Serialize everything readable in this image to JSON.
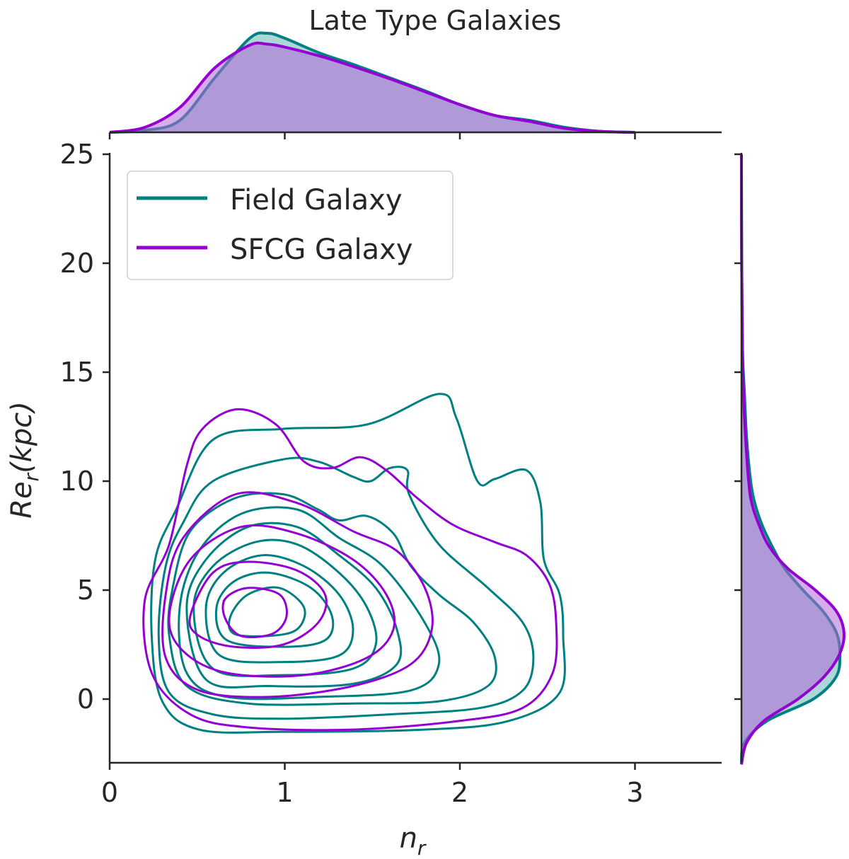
{
  "chart_data": {
    "type": "kde-joint-contour",
    "title": "Late Type Galaxies",
    "xlabel": "n",
    "xlabel_sub": "r",
    "ylabel": "Re",
    "ylabel_sub": "r",
    "ylabel_suffix": "(kpc)",
    "xlim": [
      0,
      3.5
    ],
    "ylim": [
      -2.9,
      25
    ],
    "xticks": [
      0,
      1,
      2,
      3
    ],
    "yticks": [
      0,
      5,
      10,
      15,
      20,
      25
    ],
    "grid": false,
    "legend_position": "top-left",
    "series": [
      {
        "name": "Field Galaxy",
        "color": "#008080",
        "contours": [
          [
            [
              0.38,
              8.7
            ],
            [
              0.59,
              11.9
            ],
            [
              0.99,
              12.4
            ],
            [
              1.47,
              12.6
            ],
            [
              1.88,
              14.0
            ],
            [
              1.98,
              12.9
            ],
            [
              2.1,
              10.0
            ],
            [
              2.2,
              10.1
            ],
            [
              2.38,
              10.5
            ],
            [
              2.46,
              9.0
            ],
            [
              2.48,
              6.4
            ],
            [
              2.57,
              4.8
            ],
            [
              2.59,
              2.9
            ],
            [
              2.57,
              0.3
            ],
            [
              2.28,
              -1.0
            ],
            [
              1.8,
              -1.4
            ],
            [
              0.99,
              -1.5
            ],
            [
              0.51,
              -1.4
            ],
            [
              0.3,
              -0.1
            ],
            [
              0.24,
              2.9
            ],
            [
              0.26,
              6.4
            ]
          ],
          [
            [
              0.32,
              6.1
            ],
            [
              0.42,
              8.1
            ],
            [
              0.59,
              10.0
            ],
            [
              0.99,
              11.0
            ],
            [
              1.19,
              10.9
            ],
            [
              1.39,
              10.2
            ],
            [
              1.49,
              10.0
            ],
            [
              1.6,
              10.6
            ],
            [
              1.7,
              10.5
            ],
            [
              1.71,
              9.4
            ],
            [
              1.88,
              7.1
            ],
            [
              2.16,
              5.1
            ],
            [
              2.36,
              3.5
            ],
            [
              2.42,
              1.9
            ],
            [
              2.36,
              0.4
            ],
            [
              2.12,
              -0.4
            ],
            [
              1.6,
              -0.7
            ],
            [
              0.99,
              -0.9
            ],
            [
              0.59,
              -0.7
            ],
            [
              0.34,
              0.3
            ],
            [
              0.28,
              2.9
            ]
          ],
          [
            [
              0.36,
              5.1
            ],
            [
              0.46,
              7.7
            ],
            [
              0.71,
              9.2
            ],
            [
              0.99,
              9.4
            ],
            [
              1.19,
              8.7
            ],
            [
              1.31,
              8.2
            ],
            [
              1.47,
              8.4
            ],
            [
              1.62,
              7.6
            ],
            [
              1.72,
              6.1
            ],
            [
              1.88,
              4.8
            ],
            [
              2.08,
              3.5
            ],
            [
              2.2,
              1.9
            ],
            [
              2.16,
              0.6
            ],
            [
              1.88,
              -0.1
            ],
            [
              1.39,
              -0.2
            ],
            [
              0.79,
              -0.2
            ],
            [
              0.44,
              0.6
            ],
            [
              0.34,
              2.9
            ]
          ],
          [
            [
              0.4,
              4.2
            ],
            [
              0.51,
              6.8
            ],
            [
              0.75,
              8.5
            ],
            [
              1.07,
              8.7
            ],
            [
              1.31,
              7.4
            ],
            [
              1.56,
              6.1
            ],
            [
              1.8,
              3.5
            ],
            [
              1.88,
              1.6
            ],
            [
              1.72,
              0.4
            ],
            [
              1.19,
              0.1
            ],
            [
              0.67,
              0.1
            ],
            [
              0.44,
              1.2
            ]
          ],
          [
            [
              0.44,
              4.2
            ],
            [
              0.55,
              6.4
            ],
            [
              0.79,
              7.9
            ],
            [
              1.07,
              7.9
            ],
            [
              1.31,
              6.6
            ],
            [
              1.52,
              5.1
            ],
            [
              1.64,
              3.2
            ],
            [
              1.64,
              1.6
            ],
            [
              1.39,
              0.7
            ],
            [
              0.91,
              0.6
            ],
            [
              0.55,
              0.9
            ]
          ],
          [
            [
              0.48,
              4.2
            ],
            [
              0.59,
              6.1
            ],
            [
              0.83,
              7.2
            ],
            [
              1.07,
              7.1
            ],
            [
              1.31,
              5.8
            ],
            [
              1.47,
              4.2
            ],
            [
              1.52,
              2.5
            ],
            [
              1.39,
              1.4
            ],
            [
              0.99,
              1.1
            ],
            [
              0.59,
              1.4
            ]
          ],
          [
            [
              0.55,
              4.2
            ],
            [
              0.65,
              5.8
            ],
            [
              0.87,
              6.6
            ],
            [
              1.11,
              6.1
            ],
            [
              1.31,
              4.8
            ],
            [
              1.39,
              3.2
            ],
            [
              1.31,
              2.0
            ],
            [
              0.99,
              1.7
            ],
            [
              0.63,
              2.0
            ]
          ],
          [
            [
              0.61,
              4.2
            ],
            [
              0.71,
              5.4
            ],
            [
              0.91,
              5.8
            ],
            [
              1.15,
              5.1
            ],
            [
              1.27,
              3.8
            ],
            [
              1.23,
              2.7
            ],
            [
              0.99,
              2.4
            ],
            [
              0.67,
              2.7
            ]
          ],
          [
            [
              0.69,
              3.8
            ],
            [
              0.79,
              4.8
            ],
            [
              0.97,
              5.1
            ],
            [
              1.11,
              4.2
            ],
            [
              1.07,
              3.2
            ],
            [
              0.91,
              2.9
            ],
            [
              0.71,
              3.0
            ]
          ]
        ],
        "marginal_x": {
          "x": [
            0,
            0.2,
            0.4,
            0.6,
            0.8,
            0.9,
            1.0,
            1.2,
            1.4,
            1.6,
            1.8,
            2.0,
            2.2,
            2.4,
            2.6,
            2.8,
            3.0
          ],
          "density": [
            0,
            0.02,
            0.12,
            0.55,
            0.95,
            1.0,
            0.95,
            0.8,
            0.68,
            0.55,
            0.42,
            0.28,
            0.17,
            0.12,
            0.05,
            0.01,
            0
          ]
        },
        "marginal_y": {
          "y": [
            -3,
            -2,
            -1,
            0,
            1,
            2,
            3,
            4,
            5,
            6,
            7,
            8,
            9,
            10,
            12,
            14,
            16,
            20,
            25
          ],
          "density": [
            0,
            0.03,
            0.25,
            0.7,
            0.92,
            0.96,
            0.93,
            0.8,
            0.6,
            0.42,
            0.3,
            0.2,
            0.13,
            0.09,
            0.05,
            0.03,
            0.01,
            0.003,
            0
          ]
        }
      },
      {
        "name": "SFCG Galaxy",
        "color": "#9400d3",
        "contours": [
          [
            [
              0.2,
              4.5
            ],
            [
              0.34,
              7.1
            ],
            [
              0.44,
              10.7
            ],
            [
              0.53,
              12.4
            ],
            [
              0.73,
              13.3
            ],
            [
              0.95,
              12.6
            ],
            [
              1.11,
              10.9
            ],
            [
              1.27,
              10.6
            ],
            [
              1.43,
              11.1
            ],
            [
              1.58,
              10.5
            ],
            [
              1.76,
              9.2
            ],
            [
              1.96,
              8.0
            ],
            [
              2.2,
              7.2
            ],
            [
              2.38,
              6.6
            ],
            [
              2.51,
              5.3
            ],
            [
              2.55,
              3.5
            ],
            [
              2.53,
              1.2
            ],
            [
              2.36,
              -0.4
            ],
            [
              2.0,
              -1.0
            ],
            [
              1.39,
              -1.4
            ],
            [
              0.79,
              -1.3
            ],
            [
              0.46,
              -0.7
            ],
            [
              0.24,
              1.2
            ]
          ],
          [
            [
              0.32,
              4.8
            ],
            [
              0.42,
              7.4
            ],
            [
              0.72,
              9.4
            ],
            [
              1.07,
              9.0
            ],
            [
              1.39,
              7.7
            ],
            [
              1.64,
              6.8
            ],
            [
              1.8,
              5.1
            ],
            [
              1.84,
              3.2
            ],
            [
              1.72,
              1.6
            ],
            [
              1.39,
              0.6
            ],
            [
              0.91,
              0.1
            ],
            [
              0.51,
              0.4
            ],
            [
              0.32,
              1.9
            ]
          ],
          [
            [
              0.34,
              3.8
            ],
            [
              0.46,
              6.4
            ],
            [
              0.75,
              7.9
            ],
            [
              1.07,
              7.6
            ],
            [
              1.39,
              6.4
            ],
            [
              1.58,
              4.8
            ],
            [
              1.62,
              3.2
            ],
            [
              1.47,
              1.9
            ],
            [
              1.11,
              1.1
            ],
            [
              0.67,
              1.2
            ],
            [
              0.42,
              2.2
            ]
          ],
          [
            [
              0.46,
              3.8
            ],
            [
              0.59,
              5.8
            ],
            [
              0.79,
              6.3
            ],
            [
              1.07,
              5.9
            ],
            [
              1.23,
              4.8
            ],
            [
              1.19,
              3.5
            ],
            [
              0.99,
              2.5
            ],
            [
              0.71,
              2.4
            ],
            [
              0.51,
              2.9
            ]
          ],
          [
            [
              0.66,
              4.6
            ],
            [
              0.79,
              5.1
            ],
            [
              0.97,
              4.8
            ],
            [
              1.01,
              3.8
            ],
            [
              0.93,
              3.0
            ],
            [
              0.75,
              2.9
            ],
            [
              0.66,
              3.7
            ]
          ]
        ],
        "marginal_x": {
          "x": [
            0,
            0.2,
            0.4,
            0.6,
            0.8,
            0.9,
            1.0,
            1.2,
            1.4,
            1.6,
            1.8,
            2.0,
            2.2,
            2.4,
            2.6,
            2.8,
            3.0
          ],
          "density": [
            0,
            0.05,
            0.25,
            0.65,
            0.88,
            0.89,
            0.86,
            0.77,
            0.66,
            0.54,
            0.41,
            0.28,
            0.17,
            0.11,
            0.04,
            0.01,
            0
          ]
        },
        "marginal_y": {
          "y": [
            -3,
            -2,
            -1,
            0,
            1,
            2,
            3,
            4,
            5,
            6,
            7,
            8,
            9,
            10,
            12,
            14,
            16,
            20,
            25
          ],
          "density": [
            0,
            0.05,
            0.22,
            0.55,
            0.8,
            0.95,
            1.0,
            0.93,
            0.72,
            0.45,
            0.27,
            0.17,
            0.1,
            0.07,
            0.04,
            0.02,
            0.01,
            0.002,
            0
          ]
        }
      }
    ]
  }
}
